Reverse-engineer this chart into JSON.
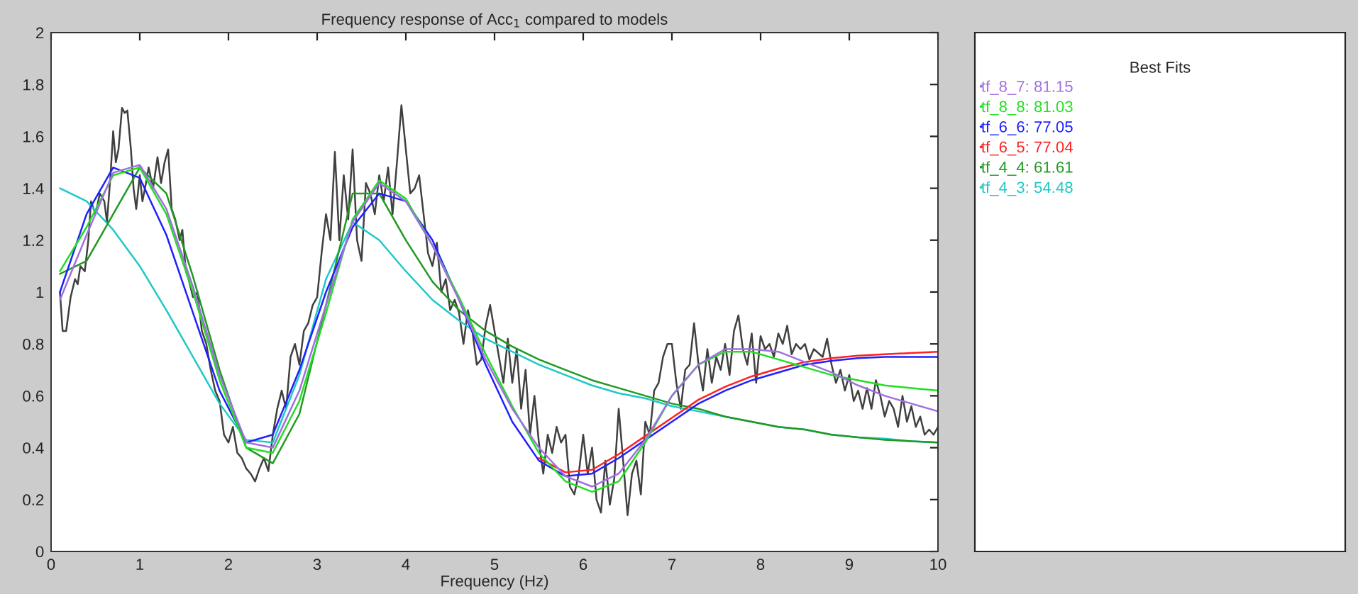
{
  "chart_data": {
    "type": "line",
    "title": "Frequency response of Acc$_{1}$ compared to models",
    "xlabel": "Frequency (Hz)",
    "legend_title": "Best Fits",
    "legend": "right",
    "grid": false,
    "marker": "none",
    "line_style": "solid",
    "xlim": [
      0,
      10
    ],
    "xticks": [
      0,
      1,
      2,
      3,
      4,
      5,
      6,
      7,
      8,
      9,
      10
    ],
    "ylim": [
      0,
      2
    ],
    "yticks": [
      0,
      0.2,
      0.4,
      0.6,
      0.8,
      1,
      1.2,
      1.4,
      1.6,
      1.8,
      2
    ],
    "x": [
      0.1,
      0.4,
      0.7,
      1.0,
      1.3,
      1.6,
      1.9,
      2.2,
      2.5,
      2.8,
      3.1,
      3.4,
      3.7,
      4.0,
      4.3,
      4.6,
      4.9,
      5.2,
      5.5,
      5.8,
      6.1,
      6.4,
      6.7,
      7.0,
      7.3,
      7.6,
      7.9,
      8.2,
      8.5,
      8.8,
      9.1,
      9.4,
      9.7,
      10.0
    ],
    "series": [
      {
        "color": "#404040",
        "x": [
          0.1,
          0.13,
          0.17,
          0.22,
          0.27,
          0.3,
          0.33,
          0.38,
          0.42,
          0.45,
          0.5,
          0.55,
          0.6,
          0.63,
          0.67,
          0.7,
          0.73,
          0.76,
          0.8,
          0.83,
          0.86,
          0.9,
          0.93,
          0.96,
          1.0,
          1.03,
          1.07,
          1.1,
          1.15,
          1.2,
          1.24,
          1.28,
          1.32,
          1.36,
          1.4,
          1.45,
          1.48,
          1.52,
          1.55,
          1.6,
          1.65,
          1.7,
          1.75,
          1.8,
          1.85,
          1.9,
          1.95,
          2.0,
          2.05,
          2.1,
          2.15,
          2.2,
          2.25,
          2.3,
          2.35,
          2.4,
          2.45,
          2.5,
          2.55,
          2.6,
          2.65,
          2.7,
          2.75,
          2.8,
          2.85,
          2.9,
          2.95,
          3.0,
          3.05,
          3.1,
          3.15,
          3.2,
          3.25,
          3.3,
          3.35,
          3.4,
          3.45,
          3.5,
          3.55,
          3.6,
          3.65,
          3.7,
          3.75,
          3.8,
          3.85,
          3.9,
          3.95,
          4.0,
          4.05,
          4.1,
          4.15,
          4.2,
          4.25,
          4.3,
          4.35,
          4.4,
          4.45,
          4.5,
          4.55,
          4.6,
          4.65,
          4.7,
          4.75,
          4.8,
          4.85,
          4.9,
          4.95,
          5.0,
          5.05,
          5.1,
          5.15,
          5.2,
          5.25,
          5.3,
          5.35,
          5.4,
          5.45,
          5.5,
          5.55,
          5.6,
          5.65,
          5.7,
          5.75,
          5.8,
          5.85,
          5.9,
          5.95,
          6.0,
          6.05,
          6.1,
          6.15,
          6.2,
          6.25,
          6.3,
          6.35,
          6.4,
          6.45,
          6.5,
          6.55,
          6.6,
          6.65,
          6.7,
          6.75,
          6.8,
          6.85,
          6.9,
          6.95,
          7.0,
          7.05,
          7.1,
          7.15,
          7.2,
          7.25,
          7.3,
          7.35,
          7.4,
          7.45,
          7.5,
          7.55,
          7.6,
          7.65,
          7.7,
          7.75,
          7.8,
          7.85,
          7.9,
          7.95,
          8.0,
          8.05,
          8.1,
          8.15,
          8.2,
          8.25,
          8.3,
          8.35,
          8.4,
          8.45,
          8.5,
          8.55,
          8.6,
          8.7,
          8.75,
          8.8,
          8.85,
          8.9,
          8.95,
          9.0,
          9.05,
          9.1,
          9.15,
          9.2,
          9.25,
          9.3,
          9.35,
          9.4,
          9.45,
          9.5,
          9.55,
          9.6,
          9.65,
          9.7,
          9.75,
          9.8,
          9.85,
          9.9,
          9.95,
          10.0
        ],
        "values": [
          1.0,
          0.85,
          0.85,
          0.98,
          1.05,
          1.03,
          1.1,
          1.08,
          1.2,
          1.35,
          1.3,
          1.38,
          1.35,
          1.27,
          1.45,
          1.62,
          1.5,
          1.55,
          1.71,
          1.69,
          1.7,
          1.55,
          1.4,
          1.32,
          1.45,
          1.35,
          1.42,
          1.48,
          1.4,
          1.52,
          1.42,
          1.5,
          1.55,
          1.32,
          1.28,
          1.2,
          1.24,
          1.08,
          1.05,
          0.98,
          1.0,
          0.85,
          0.8,
          0.7,
          0.62,
          0.58,
          0.45,
          0.42,
          0.48,
          0.38,
          0.36,
          0.32,
          0.3,
          0.27,
          0.32,
          0.36,
          0.31,
          0.45,
          0.55,
          0.62,
          0.55,
          0.75,
          0.8,
          0.72,
          0.85,
          0.88,
          0.95,
          0.98,
          1.15,
          1.3,
          1.2,
          1.54,
          1.2,
          1.45,
          1.28,
          1.55,
          1.2,
          1.12,
          1.42,
          1.38,
          1.3,
          1.45,
          1.35,
          1.48,
          1.3,
          1.5,
          1.72,
          1.55,
          1.38,
          1.4,
          1.45,
          1.3,
          1.15,
          1.1,
          1.19,
          1.0,
          1.05,
          0.93,
          0.97,
          0.92,
          0.8,
          0.93,
          0.85,
          0.72,
          0.74,
          0.87,
          0.95,
          0.85,
          0.75,
          0.65,
          0.82,
          0.65,
          0.78,
          0.55,
          0.7,
          0.45,
          0.6,
          0.42,
          0.3,
          0.45,
          0.38,
          0.48,
          0.42,
          0.45,
          0.25,
          0.22,
          0.3,
          0.45,
          0.3,
          0.4,
          0.2,
          0.15,
          0.35,
          0.18,
          0.28,
          0.55,
          0.35,
          0.14,
          0.3,
          0.35,
          0.22,
          0.5,
          0.45,
          0.62,
          0.65,
          0.75,
          0.8,
          0.8,
          0.65,
          0.55,
          0.7,
          0.72,
          0.88,
          0.72,
          0.62,
          0.78,
          0.65,
          0.75,
          0.7,
          0.8,
          0.68,
          0.85,
          0.91,
          0.78,
          0.72,
          0.84,
          0.65,
          0.83,
          0.78,
          0.8,
          0.75,
          0.84,
          0.8,
          0.87,
          0.76,
          0.8,
          0.78,
          0.8,
          0.74,
          0.78,
          0.75,
          0.82,
          0.72,
          0.65,
          0.7,
          0.62,
          0.68,
          0.58,
          0.62,
          0.55,
          0.63,
          0.55,
          0.66,
          0.6,
          0.52,
          0.58,
          0.55,
          0.48,
          0.6,
          0.5,
          0.56,
          0.48,
          0.52,
          0.45,
          0.47,
          0.45,
          0.48
        ]
      },
      {
        "name": "tf_4_3: 54.48",
        "color": "#20c8c8",
        "values": [
          1.4,
          1.35,
          1.24,
          1.1,
          0.93,
          0.75,
          0.57,
          0.43,
          0.42,
          0.68,
          1.05,
          1.27,
          1.2,
          1.08,
          0.97,
          0.89,
          0.82,
          0.77,
          0.72,
          0.68,
          0.64,
          0.61,
          0.59,
          0.56,
          0.54,
          0.52,
          0.5,
          0.48,
          0.47,
          0.45,
          0.44,
          0.435,
          0.425,
          0.42
        ]
      },
      {
        "name": "tf_4_4: 61.61",
        "color": "#229922",
        "values": [
          1.07,
          1.12,
          1.3,
          1.48,
          1.38,
          1.06,
          0.7,
          0.4,
          0.34,
          0.53,
          0.95,
          1.38,
          1.38,
          1.2,
          1.04,
          0.93,
          0.85,
          0.79,
          0.74,
          0.7,
          0.66,
          0.63,
          0.6,
          0.57,
          0.55,
          0.52,
          0.5,
          0.48,
          0.47,
          0.45,
          0.44,
          0.43,
          0.425,
          0.42
        ]
      },
      {
        "name": "tf_6_5: 77.04",
        "color": "#ff2020",
        "values": [
          null,
          null,
          null,
          null,
          null,
          null,
          null,
          null,
          null,
          null,
          null,
          null,
          null,
          null,
          null,
          null,
          null,
          null,
          0.36,
          0.305,
          0.315,
          0.375,
          0.445,
          0.515,
          0.585,
          0.635,
          0.675,
          0.705,
          0.73,
          0.745,
          0.755,
          0.76,
          0.765,
          0.77
        ]
      },
      {
        "name": "tf_6_6: 77.05",
        "color": "#2020ff",
        "values": [
          1.0,
          1.3,
          1.48,
          1.44,
          1.22,
          0.92,
          0.62,
          0.42,
          0.45,
          0.7,
          1.0,
          1.25,
          1.38,
          1.35,
          1.2,
          0.97,
          0.72,
          0.5,
          0.35,
          0.29,
          0.3,
          0.36,
          0.43,
          0.5,
          0.57,
          0.62,
          0.66,
          0.69,
          0.72,
          0.735,
          0.745,
          0.75,
          0.75,
          0.75
        ]
      },
      {
        "name": "tf_8_8: 81.03",
        "color": "#20e020",
        "values": [
          1.08,
          1.25,
          1.45,
          1.48,
          1.3,
          1.0,
          0.66,
          0.4,
          0.38,
          0.58,
          0.92,
          1.28,
          1.43,
          1.36,
          1.18,
          0.98,
          0.76,
          0.56,
          0.38,
          0.27,
          0.23,
          0.27,
          0.42,
          0.6,
          0.72,
          0.77,
          0.77,
          0.74,
          0.71,
          0.68,
          0.66,
          0.64,
          0.63,
          0.62
        ]
      },
      {
        "name": "tf_8_7: 81.15",
        "color": "#a070e0",
        "values": [
          0.97,
          1.22,
          1.46,
          1.49,
          1.32,
          1.02,
          0.68,
          0.42,
          0.4,
          0.62,
          0.95,
          1.27,
          1.42,
          1.35,
          1.18,
          0.97,
          0.74,
          0.55,
          0.4,
          0.29,
          0.25,
          0.3,
          0.43,
          0.6,
          0.72,
          0.78,
          0.78,
          0.77,
          0.73,
          0.69,
          0.64,
          0.6,
          0.57,
          0.54
        ]
      }
    ]
  }
}
